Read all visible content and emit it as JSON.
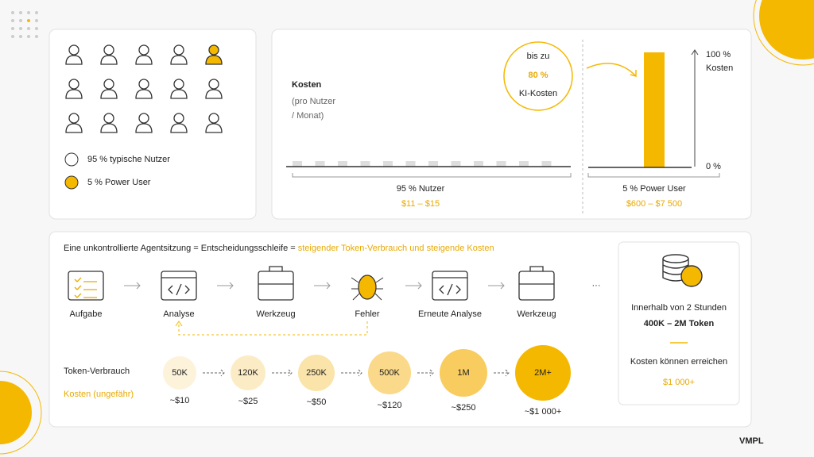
{
  "users_panel": {
    "legend": [
      "95 % typische Nutzer",
      "5 % Power User"
    ]
  },
  "cost_panel": {
    "title": "Kosten",
    "subtitle": [
      "(pro Nutzer",
      "/ Monat)"
    ],
    "callout": {
      "top": "bis zu",
      "value": "80 %",
      "bottom": "KI-Kosten"
    },
    "axis": {
      "top": "100 %",
      "top_sub": "Kosten",
      "bottom": "0 %"
    },
    "groups": [
      {
        "label": "95 % Nutzer",
        "range": "$11 – $15"
      },
      {
        "label": "5 % Power User",
        "range": "$600 – $7 500"
      }
    ]
  },
  "flow": {
    "headline": "Eine unkontrollierte Agentsitzung = Entscheidungsschleife = ",
    "headline_highlight": "steigender Token-Verbrauch und steigende Kosten",
    "steps": [
      "Aufgabe",
      "Analyse",
      "Werkzeug",
      "Fehler",
      "Erneute Analyse",
      "Werkzeug"
    ],
    "ellipsis": "···",
    "token_label": "Token-Verbrauch",
    "cost_label": "Kosten (ungefähr)",
    "tokens": [
      {
        "tokens": "50K",
        "cost": "~$10"
      },
      {
        "tokens": "120K",
        "cost": "~$25"
      },
      {
        "tokens": "250K",
        "cost": "~$50"
      },
      {
        "tokens": "500K",
        "cost": "~$120"
      },
      {
        "tokens": "1M",
        "cost": "~$250"
      },
      {
        "tokens": "2M+",
        "cost": "~$1 000+"
      }
    ]
  },
  "summary": {
    "line1": "Innerhalb von 2 Stunden",
    "line2": "400K – 2M Token",
    "line3": "Kosten können erreichen",
    "value": "$1 000+"
  },
  "brand": "VMPL"
}
